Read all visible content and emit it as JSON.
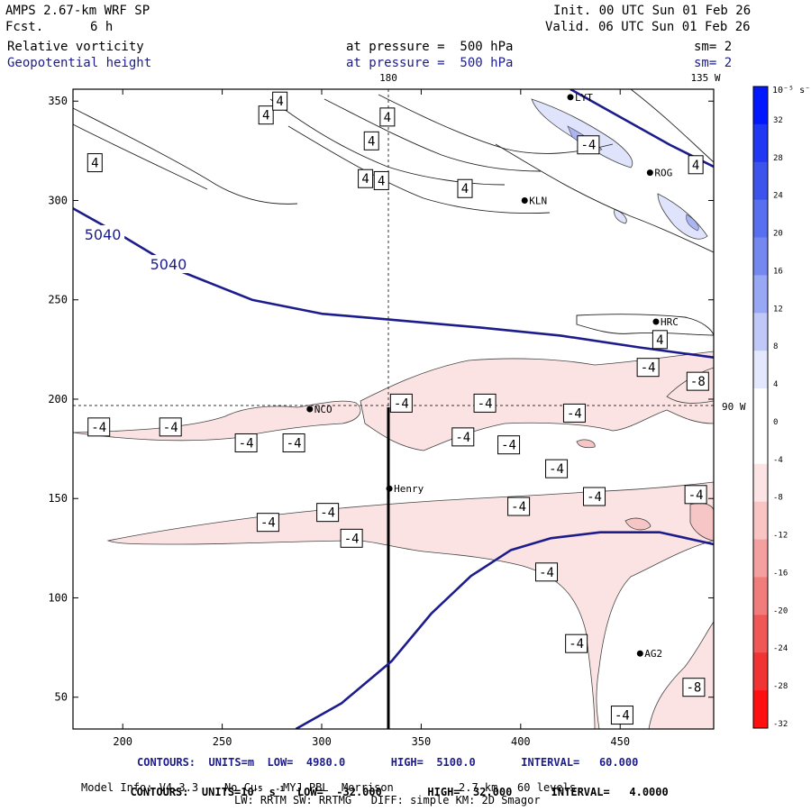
{
  "header": {
    "title": "AMPS 2.67-km WRF SP",
    "forecast_label": "Fcst.",
    "forecast_value": "6 h",
    "init": "Init. 00 UTC Sun 01 Feb 26",
    "valid": "Valid. 06 UTC Sun 01 Feb 26",
    "field1_name": "Relative vorticity",
    "field1_level": "at pressure =  500 hPa",
    "field1_sm": "sm= 2",
    "field2_name": "Geopotential height",
    "field2_level": "at pressure =  500 hPa",
    "field2_sm": "sm= 2"
  },
  "map_labels": {
    "lon_180": "180",
    "lon_135w": "135 W",
    "lon_90w": "90 W"
  },
  "stations": [
    {
      "name": "LYT",
      "x": 425,
      "y": 352
    },
    {
      "name": "ROG",
      "x": 465,
      "y": 314
    },
    {
      "name": "KLN",
      "x": 402,
      "y": 300
    },
    {
      "name": "HRC",
      "x": 468,
      "y": 239
    },
    {
      "name": "NCO",
      "x": 294,
      "y": 195
    },
    {
      "name": "Henry",
      "x": 334,
      "y": 155
    },
    {
      "name": "AG2",
      "x": 460,
      "y": 72
    }
  ],
  "colorbar": {
    "unit": "10⁻⁵ s⁻¹",
    "ticks": [
      "32",
      "28",
      "24",
      "20",
      "16",
      "12",
      "8",
      "4",
      "0",
      "-4",
      "-8",
      "-12",
      "-16",
      "-20",
      "-24",
      "-28",
      "-32"
    ],
    "colors": [
      "#0018ff",
      "#2038f4",
      "#3c54ec",
      "#5870f0",
      "#7488f0",
      "#98a8f4",
      "#c0c8f8",
      "#e4e8fc",
      "#ffffff",
      "#ffffff",
      "#fce4e4",
      "#f8c4c4",
      "#f4a0a0",
      "#f07c7c",
      "#f05858",
      "#f03434",
      "#ff1010"
    ]
  },
  "footer": {
    "contours1": "CONTOURS:  UNITS=m  LOW=  4980.0       HIGH=  5100.0       INTERVAL=   60.000",
    "contours2_a": "CONTOURS:  UNITS=10",
    "contours2_sup1": "-5",
    "contours2_b": " s",
    "contours2_sup2": "-1",
    "contours2_c": "  LOW=  -32.000       HIGH=  32.000      INTERVAL=   4.0000",
    "model_info": "Model Info: V4.3.3    No Cu    MYJ PBL  Morrison          2.7 km,  60 levels,",
    "model_info2": "LW: RRTM SW: RRTMG   DIFF: simple KM: 2D Smagor"
  },
  "chart_data": {
    "type": "contour",
    "title": "",
    "xlim": [
      175,
      497
    ],
    "ylim": [
      34,
      356
    ],
    "xticks": [
      200,
      250,
      300,
      350,
      400,
      450
    ],
    "yticks": [
      50,
      100,
      150,
      200,
      250,
      300,
      350
    ],
    "height_contour_label": "5040",
    "height_contours": [
      {
        "level": "5040",
        "points": [
          [
            175,
            296
          ],
          [
            200,
            282
          ],
          [
            230,
            264
          ],
          [
            265,
            250
          ],
          [
            300,
            243
          ],
          [
            335,
            240
          ],
          [
            380,
            236
          ],
          [
            420,
            232
          ],
          [
            460,
            226
          ],
          [
            497,
            221
          ]
        ]
      },
      {
        "level": "",
        "points": [
          [
            287,
            34
          ],
          [
            310,
            47
          ],
          [
            335,
            68
          ],
          [
            355,
            92
          ],
          [
            375,
            111
          ],
          [
            395,
            124
          ],
          [
            415,
            130
          ],
          [
            440,
            133
          ],
          [
            470,
            133
          ],
          [
            497,
            127
          ]
        ]
      },
      {
        "level": "",
        "points": [
          [
            425,
            356
          ],
          [
            450,
            342
          ],
          [
            475,
            328
          ],
          [
            497,
            317
          ]
        ]
      }
    ],
    "vorticity_labels": [
      {
        "text": "4",
        "x": 186,
        "y": 319
      },
      {
        "text": "4",
        "x": 272,
        "y": 343
      },
      {
        "text": "4",
        "x": 279,
        "y": 350
      },
      {
        "text": "4",
        "x": 333,
        "y": 342
      },
      {
        "text": "4",
        "x": 325,
        "y": 330
      },
      {
        "text": "4",
        "x": 322,
        "y": 311
      },
      {
        "text": "4",
        "x": 330,
        "y": 310
      },
      {
        "text": "4",
        "x": 372,
        "y": 306
      },
      {
        "text": "4",
        "x": 488,
        "y": 318
      },
      {
        "text": "4",
        "x": 470,
        "y": 230
      },
      {
        "text": "-4",
        "x": 434,
        "y": 328
      },
      {
        "text": "-4",
        "x": 464,
        "y": 216
      },
      {
        "text": "-4",
        "x": 340,
        "y": 198
      },
      {
        "text": "-4",
        "x": 382,
        "y": 198
      },
      {
        "text": "-4",
        "x": 427,
        "y": 193
      },
      {
        "text": "-4",
        "x": 188,
        "y": 186
      },
      {
        "text": "-4",
        "x": 224,
        "y": 186
      },
      {
        "text": "-4",
        "x": 262,
        "y": 178
      },
      {
        "text": "-4",
        "x": 286,
        "y": 178
      },
      {
        "text": "-4",
        "x": 371,
        "y": 181
      },
      {
        "text": "-4",
        "x": 394,
        "y": 177
      },
      {
        "text": "-4",
        "x": 418,
        "y": 165
      },
      {
        "text": "-4",
        "x": 437,
        "y": 151
      },
      {
        "text": "-4",
        "x": 488,
        "y": 152
      },
      {
        "text": "-4",
        "x": 399,
        "y": 146
      },
      {
        "text": "-4",
        "x": 273,
        "y": 138
      },
      {
        "text": "-4",
        "x": 303,
        "y": 143
      },
      {
        "text": "-4",
        "x": 315,
        "y": 130
      },
      {
        "text": "-4",
        "x": 413,
        "y": 113
      },
      {
        "text": "-4",
        "x": 428,
        "y": 77
      },
      {
        "text": "-4",
        "x": 451,
        "y": 41
      },
      {
        "text": "-8",
        "x": 489,
        "y": 209
      },
      {
        "text": "-8",
        "x": 487,
        "y": 55
      }
    ]
  }
}
